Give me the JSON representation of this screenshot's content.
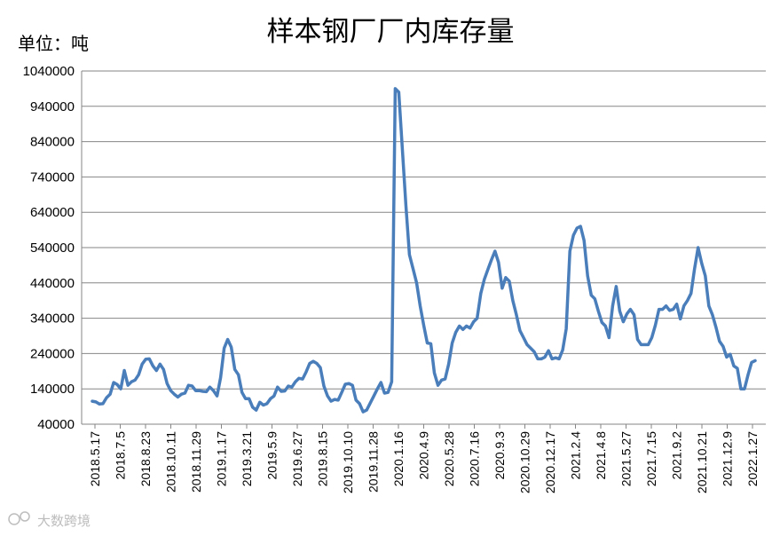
{
  "chart_data": {
    "type": "line",
    "title": "样本钢厂厂内库存量",
    "unit_label": "单位：吨",
    "ylim": [
      40000,
      1040000
    ],
    "y_ticks": [
      "40000",
      "140000",
      "240000",
      "340000",
      "440000",
      "540000",
      "640000",
      "740000",
      "840000",
      "940000",
      "1040000"
    ],
    "x_tick_labels": [
      "2018.5.17",
      "2018.7.5",
      "2018.8.23",
      "2018.10.11",
      "2018.11.29",
      "2019.1.17",
      "2019.3.21",
      "2019.5.9",
      "2019.6.27",
      "2019.8.15",
      "2019.10.10",
      "2019.11.28",
      "2020.1.16",
      "2020.4.9",
      "2020.5.28",
      "2020.7.16",
      "2020.9.3",
      "2020.10.29",
      "2020.12.17",
      "2021.2.4",
      "2021.4.8",
      "2021.5.27",
      "2021.7.15",
      "2021.9.2",
      "2021.10.21",
      "2021.12.9",
      "2022.1.27"
    ],
    "grid": true,
    "legend": "none",
    "line_color": "#4a7ebb",
    "series": [
      {
        "values": [
          105000,
          103000,
          97000,
          98000,
          115000,
          125000,
          158000,
          152000,
          140000,
          192000,
          150000,
          160000,
          165000,
          180000,
          210000,
          224000,
          225000,
          205000,
          192000,
          210000,
          195000,
          155000,
          135000,
          125000,
          117000,
          125000,
          128000,
          150000,
          148000,
          135000,
          135000,
          133000,
          132000,
          145000,
          135000,
          120000,
          172000,
          255000,
          280000,
          258000,
          195000,
          180000,
          130000,
          112000,
          112000,
          88000,
          80000,
          102000,
          94000,
          98000,
          112000,
          120000,
          145000,
          133000,
          134000,
          148000,
          145000,
          160000,
          170000,
          168000,
          188000,
          212000,
          218000,
          212000,
          200000,
          148000,
          120000,
          105000,
          110000,
          108000,
          130000,
          153000,
          155000,
          150000,
          108000,
          98000,
          75000,
          80000,
          100000,
          120000,
          140000,
          158000,
          128000,
          130000,
          160000,
          990000,
          980000,
          820000,
          660000,
          520000,
          480000,
          440000,
          375000,
          320000,
          270000,
          268000,
          185000,
          150000,
          165000,
          168000,
          210000,
          270000,
          300000,
          318000,
          308000,
          318000,
          312000,
          330000,
          340000,
          410000,
          450000,
          478000,
          505000,
          530000,
          498000,
          425000,
          455000,
          445000,
          390000,
          350000,
          305000,
          285000,
          265000,
          255000,
          245000,
          225000,
          225000,
          230000,
          248000,
          225000,
          228000,
          225000,
          250000,
          310000,
          530000,
          575000,
          595000,
          600000,
          560000,
          460000,
          405000,
          395000,
          360000,
          328000,
          318000,
          285000,
          375000,
          430000,
          360000,
          330000,
          352000,
          365000,
          350000,
          280000,
          265000,
          265000,
          265000,
          285000,
          320000,
          365000,
          365000,
          375000,
          362000,
          365000,
          380000,
          338000,
          375000,
          390000,
          410000,
          480000,
          540000,
          495000,
          460000,
          375000,
          350000,
          315000,
          275000,
          260000,
          230000,
          238000,
          205000,
          198000,
          140000,
          140000,
          180000,
          215000,
          220000
        ]
      }
    ]
  },
  "watermark": "大数跨境"
}
